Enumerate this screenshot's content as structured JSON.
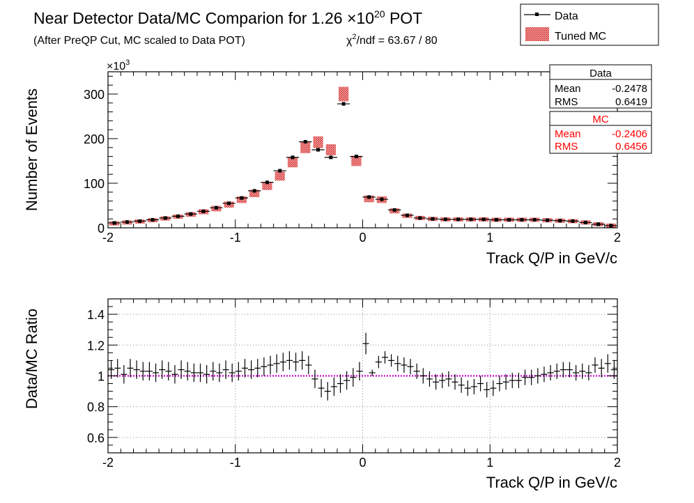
{
  "header": {
    "title_main": "Near Detector Data/MC Comparion for 1.26 ",
    "title_times": "×10",
    "title_exp": "20",
    "title_end": " POT",
    "subtitle": "(After PreQP Cut, MC scaled to Data POT)",
    "chi2_sym": "χ",
    "chi2_exp": "2",
    "chi2_rest": "/ndf = 63.67 / 80"
  },
  "legend": {
    "data_label": "Data",
    "mc_label": "Tuned MC"
  },
  "stats": {
    "data": {
      "title": "Data",
      "mean_label": "Mean",
      "mean": "-0.2478",
      "rms_label": "RMS",
      "rms": "0.6419"
    },
    "mc": {
      "title": "MC",
      "mean_label": "Mean",
      "mean": "-0.2406",
      "rms_label": "RMS",
      "rms": "0.6456"
    }
  },
  "colors": {
    "data": "#000000",
    "mc": "#e53030",
    "ratio_line": "#cc00cc",
    "grid": "#888888"
  },
  "chart_data": [
    {
      "type": "bar",
      "ylabel": "Number of Events",
      "xlabel": "Track Q/P in GeV/c",
      "y_multiplier": "×10",
      "y_multiplier_exp": "3",
      "xlim": [
        -2,
        2
      ],
      "ylim": [
        0,
        350
      ],
      "xticks": [
        -2,
        -1,
        0,
        1,
        2
      ],
      "yticks": [
        0,
        100,
        200,
        300
      ],
      "series": [
        {
          "name": "Data",
          "style": "points",
          "x": [
            -1.95,
            -1.85,
            -1.75,
            -1.65,
            -1.55,
            -1.45,
            -1.35,
            -1.25,
            -1.15,
            -1.05,
            -0.95,
            -0.85,
            -0.75,
            -0.65,
            -0.55,
            -0.45,
            -0.35,
            -0.25,
            -0.15,
            -0.05,
            0.05,
            0.15,
            0.25,
            0.35,
            0.45,
            0.55,
            0.65,
            0.75,
            0.85,
            0.95,
            1.05,
            1.15,
            1.25,
            1.35,
            1.45,
            1.55,
            1.65,
            1.75,
            1.85,
            1.95
          ],
          "y": [
            11,
            13,
            15,
            18,
            22,
            26,
            31,
            37,
            45,
            55,
            67,
            83,
            102,
            128,
            158,
            193,
            175,
            158,
            278,
            160,
            69,
            64,
            40,
            28,
            22,
            20,
            19,
            19,
            19,
            19,
            18,
            18,
            18,
            18,
            17,
            16,
            15,
            12,
            8,
            5
          ]
        },
        {
          "name": "Tuned MC",
          "style": "band",
          "x": [
            -1.95,
            -1.85,
            -1.75,
            -1.65,
            -1.55,
            -1.45,
            -1.35,
            -1.25,
            -1.15,
            -1.05,
            -0.95,
            -0.85,
            -0.75,
            -0.65,
            -0.55,
            -0.45,
            -0.35,
            -0.25,
            -0.15,
            -0.05,
            0.05,
            0.15,
            0.25,
            0.35,
            0.45,
            0.55,
            0.65,
            0.75,
            0.85,
            0.95,
            1.05,
            1.15,
            1.25,
            1.35,
            1.45,
            1.55,
            1.65,
            1.75,
            1.85,
            1.95
          ],
          "y": [
            10,
            12,
            14,
            17,
            21,
            25,
            30,
            36,
            43,
            52,
            63,
            77,
            94,
            116,
            147,
            180,
            192,
            175,
            300,
            150,
            65,
            63,
            38,
            27,
            22,
            20,
            19,
            19,
            19,
            19,
            18,
            18,
            18,
            18,
            17,
            16,
            15,
            12,
            8,
            5
          ]
        }
      ]
    },
    {
      "type": "scatter",
      "ylabel": "Data/MC Ratio",
      "xlabel": "Track Q/P in GeV/c",
      "xlim": [
        -2,
        2
      ],
      "ylim": [
        0.5,
        1.5
      ],
      "xticks": [
        -2,
        -1,
        0,
        1,
        2
      ],
      "yticks": [
        0.6,
        0.8,
        1,
        1.2,
        1.4
      ],
      "reference_line": 1,
      "series": [
        {
          "name": "Data/MC",
          "x": [
            -1.975,
            -1.925,
            -1.875,
            -1.825,
            -1.775,
            -1.725,
            -1.675,
            -1.625,
            -1.575,
            -1.525,
            -1.475,
            -1.425,
            -1.375,
            -1.325,
            -1.275,
            -1.225,
            -1.175,
            -1.125,
            -1.075,
            -1.025,
            -0.975,
            -0.925,
            -0.875,
            -0.825,
            -0.775,
            -0.725,
            -0.675,
            -0.625,
            -0.575,
            -0.525,
            -0.475,
            -0.425,
            -0.375,
            -0.325,
            -0.275,
            -0.225,
            -0.175,
            -0.125,
            -0.075,
            -0.025,
            0.025,
            0.075,
            0.125,
            0.175,
            0.225,
            0.275,
            0.325,
            0.375,
            0.425,
            0.475,
            0.525,
            0.575,
            0.625,
            0.675,
            0.725,
            0.775,
            0.825,
            0.875,
            0.925,
            0.975,
            1.025,
            1.075,
            1.125,
            1.175,
            1.225,
            1.275,
            1.325,
            1.375,
            1.425,
            1.475,
            1.525,
            1.575,
            1.625,
            1.675,
            1.725,
            1.775,
            1.825,
            1.875,
            1.925,
            1.975
          ],
          "y": [
            1.04,
            1.05,
            1.01,
            1.05,
            1.04,
            1.03,
            1.03,
            1.02,
            1.04,
            1.03,
            1.01,
            1.04,
            1.03,
            1.02,
            1.02,
            1.01,
            1.03,
            1.02,
            1.04,
            1.02,
            1.03,
            1.05,
            1.04,
            1.05,
            1.06,
            1.07,
            1.08,
            1.09,
            1.1,
            1.09,
            1.1,
            1.07,
            0.98,
            0.92,
            0.9,
            0.93,
            0.95,
            0.97,
            0.99,
            1.03,
            1.21,
            1.02,
            1.09,
            1.12,
            1.1,
            1.08,
            1.07,
            1.06,
            1.03,
            1.0,
            0.98,
            0.96,
            0.97,
            0.98,
            0.96,
            0.94,
            0.92,
            0.93,
            0.95,
            0.91,
            0.92,
            0.95,
            0.96,
            0.97,
            0.97,
            0.99,
            0.99,
            1.0,
            1.01,
            1.02,
            1.03,
            1.04,
            1.04,
            1.02,
            1.03,
            1.02,
            1.07,
            1.05,
            1.08,
            1.04
          ],
          "err": [
            0.06,
            0.06,
            0.06,
            0.06,
            0.06,
            0.06,
            0.06,
            0.06,
            0.06,
            0.06,
            0.06,
            0.06,
            0.06,
            0.06,
            0.06,
            0.06,
            0.06,
            0.06,
            0.06,
            0.06,
            0.06,
            0.06,
            0.06,
            0.06,
            0.06,
            0.06,
            0.06,
            0.06,
            0.06,
            0.06,
            0.06,
            0.06,
            0.06,
            0.06,
            0.06,
            0.06,
            0.06,
            0.06,
            0.06,
            0.06,
            0.07,
            0.02,
            0.04,
            0.04,
            0.04,
            0.05,
            0.05,
            0.05,
            0.05,
            0.05,
            0.05,
            0.05,
            0.05,
            0.05,
            0.05,
            0.05,
            0.05,
            0.05,
            0.05,
            0.05,
            0.05,
            0.05,
            0.05,
            0.05,
            0.05,
            0.05,
            0.05,
            0.05,
            0.05,
            0.05,
            0.05,
            0.05,
            0.05,
            0.05,
            0.05,
            0.05,
            0.05,
            0.06,
            0.06,
            0.06
          ]
        }
      ]
    }
  ]
}
